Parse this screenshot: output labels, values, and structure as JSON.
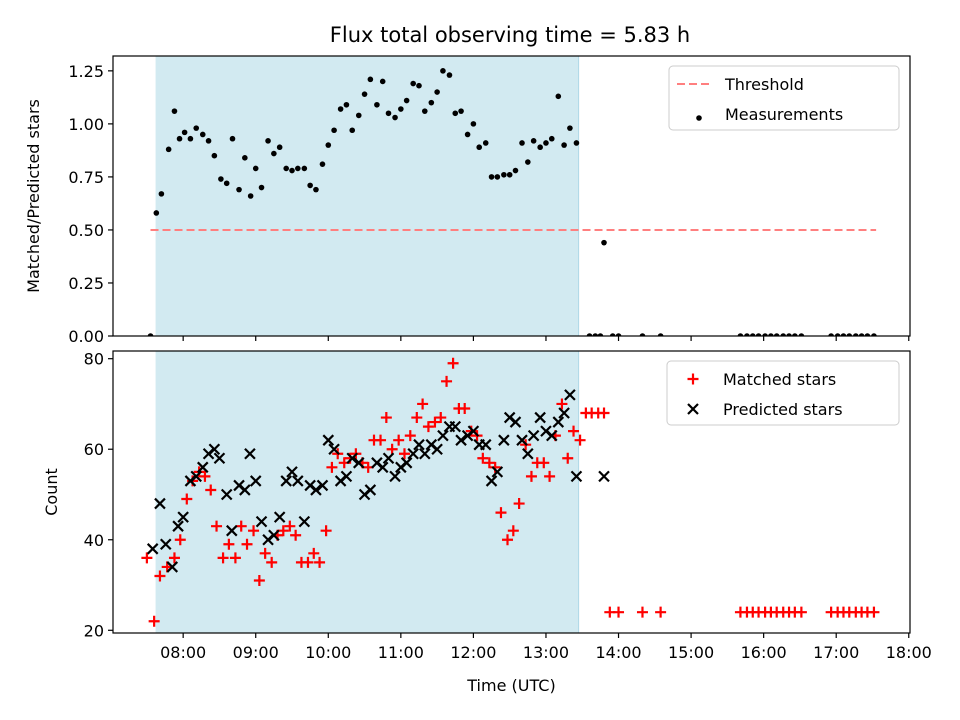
{
  "figure_title": "Flux total observing time = 5.83 h",
  "colors": {
    "shade": "#add8e6",
    "threshold": "#ff7f7f",
    "measurements": "#000000",
    "matched": "#ff0000",
    "predicted": "#000000"
  },
  "chart_data": [
    {
      "type": "scatter",
      "title": "Flux total observing time = 5.83 h",
      "ylabel": "Matched/Predicted stars",
      "xlabel": "",
      "xlim": [
        7.033,
        18.017
      ],
      "ylim": [
        0,
        1.32
      ],
      "yticks": [
        0.0,
        0.25,
        0.5,
        0.75,
        1.0,
        1.25
      ],
      "ytick_labels": [
        "0.00",
        "0.25",
        "0.50",
        "0.75",
        "1.00",
        "1.25"
      ],
      "xticks": [
        8,
        9,
        10,
        11,
        12,
        13,
        14,
        15,
        16,
        17,
        18
      ],
      "shaded_span": [
        7.62,
        13.45
      ],
      "legend_position": "upper right",
      "threshold": {
        "name": "Threshold",
        "y": 0.5,
        "x_range": [
          7.55,
          17.55
        ],
        "style": "dashed"
      },
      "series": [
        {
          "name": "Measurements",
          "marker": "dot",
          "x": [
            7.55,
            7.63,
            7.7,
            7.8,
            7.88,
            7.95,
            8.02,
            8.1,
            8.18,
            8.27,
            8.35,
            8.43,
            8.52,
            8.6,
            8.68,
            8.77,
            8.85,
            8.93,
            9.0,
            9.08,
            9.17,
            9.25,
            9.33,
            9.42,
            9.5,
            9.58,
            9.67,
            9.75,
            9.83,
            9.92,
            10.0,
            10.08,
            10.17,
            10.25,
            10.33,
            10.42,
            10.5,
            10.58,
            10.67,
            10.75,
            10.83,
            10.92,
            11.0,
            11.08,
            11.17,
            11.25,
            11.33,
            11.42,
            11.5,
            11.58,
            11.67,
            11.75,
            11.83,
            11.92,
            12.0,
            12.08,
            12.17,
            12.25,
            12.33,
            12.42,
            12.5,
            12.58,
            12.67,
            12.75,
            12.83,
            12.92,
            13.0,
            13.08,
            13.17,
            13.25,
            13.33,
            13.42,
            13.6,
            13.68,
            13.75,
            13.8,
            13.92,
            14.0,
            14.33,
            14.58,
            15.68,
            15.77,
            15.85,
            15.93,
            16.02,
            16.1,
            16.18,
            16.27,
            16.35,
            16.43,
            16.52,
            16.93,
            17.02,
            17.1,
            17.18,
            17.27,
            17.35,
            17.43,
            17.52
          ],
          "y": [
            0.0,
            0.58,
            0.67,
            0.88,
            1.06,
            0.93,
            0.96,
            0.93,
            0.98,
            0.95,
            0.92,
            0.85,
            0.74,
            0.72,
            0.93,
            0.69,
            0.84,
            0.66,
            0.79,
            0.7,
            0.92,
            0.86,
            0.89,
            0.79,
            0.78,
            0.79,
            0.79,
            0.71,
            0.69,
            0.81,
            0.9,
            0.97,
            1.07,
            1.09,
            0.97,
            1.04,
            1.14,
            1.21,
            1.09,
            1.2,
            1.05,
            1.03,
            1.07,
            1.11,
            1.19,
            1.18,
            1.06,
            1.1,
            1.15,
            1.25,
            1.23,
            1.05,
            1.06,
            0.95,
            1.0,
            0.89,
            0.91,
            0.75,
            0.75,
            0.76,
            0.76,
            0.78,
            0.91,
            0.82,
            0.92,
            0.89,
            0.91,
            0.93,
            1.13,
            0.9,
            0.98,
            0.91,
            0.0,
            0.0,
            0.0,
            0.44,
            0.0,
            0.0,
            0.0,
            0.0,
            0.0,
            0.0,
            0.0,
            0.0,
            0.0,
            0.0,
            0.0,
            0.0,
            0.0,
            0.0,
            0.0,
            0.0,
            0.0,
            0.0,
            0.0,
            0.0,
            0.0,
            0.0,
            0.0
          ]
        }
      ]
    },
    {
      "type": "scatter",
      "title": "",
      "xlabel": "Time (UTC)",
      "ylabel": "Count",
      "xlim": [
        7.033,
        18.017
      ],
      "ylim": [
        19.4,
        81.7
      ],
      "yticks": [
        20,
        40,
        60,
        80
      ],
      "ytick_labels": [
        "20",
        "40",
        "60",
        "80"
      ],
      "xticks": [
        8,
        9,
        10,
        11,
        12,
        13,
        14,
        15,
        16,
        17,
        18
      ],
      "xtick_labels": [
        "08:00",
        "09:00",
        "10:00",
        "11:00",
        "12:00",
        "13:00",
        "14:00",
        "15:00",
        "16:00",
        "17:00",
        "18:00"
      ],
      "shaded_span": [
        7.62,
        13.45
      ],
      "legend_position": "upper right",
      "series": [
        {
          "name": "Matched stars",
          "marker": "plus",
          "x": [
            7.5,
            7.6,
            7.68,
            7.78,
            7.88,
            7.96,
            8.05,
            8.13,
            8.22,
            8.3,
            8.38,
            8.46,
            8.55,
            8.63,
            8.72,
            8.8,
            8.88,
            8.97,
            9.05,
            9.13,
            9.22,
            9.3,
            9.38,
            9.47,
            9.55,
            9.63,
            9.72,
            9.8,
            9.88,
            9.97,
            10.05,
            10.13,
            10.22,
            10.3,
            10.38,
            10.47,
            10.55,
            10.63,
            10.72,
            10.8,
            10.88,
            10.97,
            11.05,
            11.13,
            11.22,
            11.3,
            11.38,
            11.47,
            11.55,
            11.63,
            11.72,
            11.8,
            11.88,
            11.97,
            12.05,
            12.13,
            12.22,
            12.3,
            12.38,
            12.47,
            12.55,
            12.63,
            12.72,
            12.8,
            12.88,
            12.97,
            13.05,
            13.13,
            13.22,
            13.3,
            13.38,
            13.47,
            13.55,
            13.63,
            13.72,
            13.8,
            13.88,
            14.0,
            14.33,
            14.58,
            15.68,
            15.77,
            15.85,
            15.93,
            16.02,
            16.1,
            16.18,
            16.27,
            16.35,
            16.43,
            16.52,
            16.93,
            17.02,
            17.1,
            17.18,
            17.27,
            17.35,
            17.43,
            17.52
          ],
          "y": [
            36,
            22,
            32,
            34,
            36,
            40,
            49,
            53,
            55,
            54,
            51,
            43,
            36,
            39,
            36,
            43,
            39,
            42,
            31,
            37,
            35,
            41,
            42,
            43,
            41,
            35,
            35,
            37,
            35,
            42,
            56,
            59,
            57,
            58,
            59,
            57,
            56,
            62,
            62,
            67,
            60,
            62,
            59,
            63,
            67,
            70,
            65,
            66,
            67,
            75,
            79,
            69,
            69,
            64,
            63,
            58,
            57,
            56,
            46,
            40,
            42,
            48,
            61,
            54,
            57,
            57,
            54,
            63,
            70,
            58,
            64,
            62,
            68,
            68,
            68,
            68,
            24,
            24,
            24,
            24,
            24,
            24,
            24,
            24,
            24,
            24,
            24,
            24,
            24,
            24,
            24,
            24,
            24,
            24,
            24,
            24,
            24,
            24,
            24
          ]
        },
        {
          "name": "Predicted stars",
          "marker": "x",
          "x": [
            7.58,
            7.68,
            7.76,
            7.85,
            7.93,
            8.0,
            8.1,
            8.18,
            8.27,
            8.35,
            8.43,
            8.5,
            8.6,
            8.67,
            8.77,
            8.85,
            8.92,
            9.0,
            9.08,
            9.17,
            9.25,
            9.33,
            9.42,
            9.5,
            9.58,
            9.67,
            9.75,
            9.83,
            9.92,
            10.0,
            10.08,
            10.17,
            10.25,
            10.33,
            10.42,
            10.5,
            10.58,
            10.67,
            10.75,
            10.83,
            10.92,
            11.0,
            11.08,
            11.17,
            11.25,
            11.33,
            11.42,
            11.5,
            11.58,
            11.67,
            11.75,
            11.83,
            11.92,
            12.0,
            12.08,
            12.17,
            12.25,
            12.33,
            12.42,
            12.5,
            12.58,
            12.67,
            12.75,
            12.83,
            12.92,
            13.0,
            13.08,
            13.17,
            13.25,
            13.33,
            13.42,
            13.8
          ],
          "y": [
            38,
            48,
            39,
            34,
            43,
            45,
            53,
            54,
            56,
            59,
            60,
            58,
            50,
            42,
            52,
            51,
            59,
            53,
            44,
            40,
            41,
            45,
            53,
            55,
            53,
            44,
            52,
            51,
            52,
            62,
            60,
            53,
            54,
            58,
            57,
            50,
            51,
            57,
            56,
            58,
            54,
            56,
            57,
            59,
            61,
            59,
            61,
            60,
            63,
            65,
            65,
            62,
            63,
            64,
            61,
            61,
            53,
            55,
            62,
            67,
            66,
            62,
            59,
            63,
            67,
            64,
            63,
            66,
            68,
            72,
            54,
            54
          ]
        }
      ]
    }
  ]
}
